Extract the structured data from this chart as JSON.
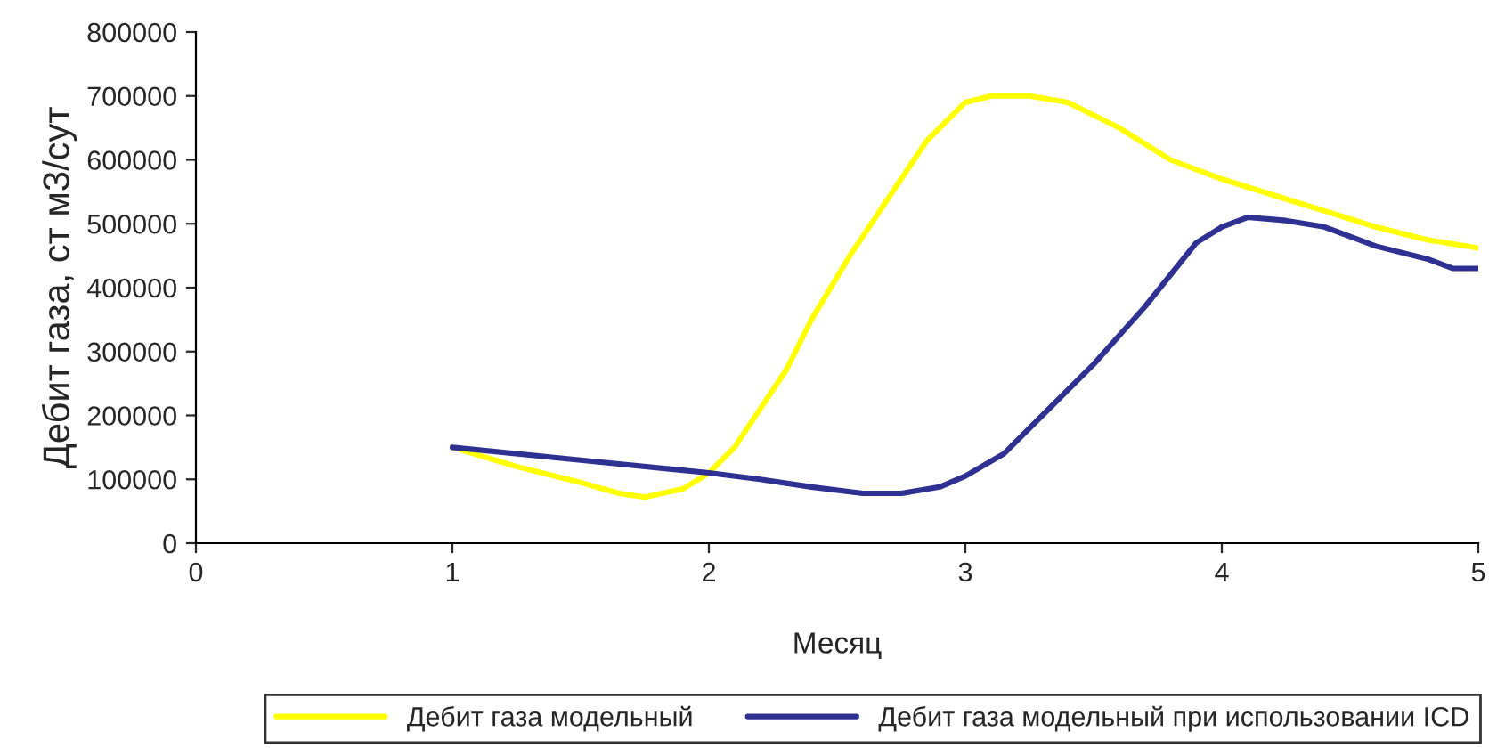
{
  "chart_data": {
    "type": "line",
    "xlabel": "Месяц",
    "ylabel": "Дебит газа, ст м3/сут",
    "xlim": [
      0,
      5
    ],
    "xticks": [
      0,
      1,
      2,
      3,
      4,
      5
    ],
    "ylim": [
      0,
      800000
    ],
    "yticks": [
      0,
      100000,
      200000,
      300000,
      400000,
      500000,
      600000,
      700000,
      800000
    ],
    "grid": false,
    "legend": "bottom",
    "marker": "none",
    "line_style": "solid",
    "series": [
      {
        "name": "Дебит газа модельный",
        "color": "#ffff00",
        "x": [
          1,
          1.25,
          1.5,
          1.65,
          1.75,
          1.9,
          2,
          2.1,
          2.2,
          2.3,
          2.4,
          2.55,
          2.7,
          2.85,
          3,
          3.1,
          3.25,
          3.4,
          3.6,
          3.8,
          4,
          4.2,
          4.4,
          4.6,
          4.8,
          5
        ],
        "values": [
          150000,
          120000,
          95000,
          78000,
          72000,
          85000,
          110000,
          150000,
          210000,
          270000,
          350000,
          450000,
          540000,
          630000,
          690000,
          700000,
          700000,
          690000,
          650000,
          600000,
          570000,
          545000,
          520000,
          495000,
          475000,
          462000
        ]
      },
      {
        "name": "Дебит газа модельный при использовании ICD",
        "color": "#2e3192",
        "x": [
          1,
          1.5,
          2,
          2.2,
          2.4,
          2.6,
          2.75,
          2.9,
          3,
          3.15,
          3.3,
          3.5,
          3.7,
          3.9,
          4,
          4.1,
          4.25,
          4.4,
          4.6,
          4.8,
          4.9,
          5
        ],
        "values": [
          150000,
          130000,
          110000,
          100000,
          88000,
          78000,
          78000,
          88000,
          105000,
          140000,
          200000,
          280000,
          370000,
          470000,
          495000,
          510000,
          505000,
          495000,
          465000,
          445000,
          430000,
          430000
        ]
      }
    ]
  }
}
